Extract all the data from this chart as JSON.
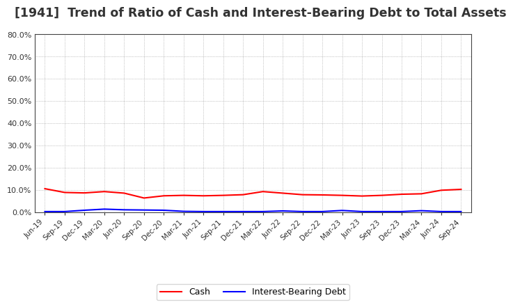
{
  "title": "[1941]  Trend of Ratio of Cash and Interest-Bearing Debt to Total Assets",
  "title_fontsize": 12.5,
  "background_color": "#ffffff",
  "plot_bg_color": "#ffffff",
  "grid_color": "#999999",
  "xlabels": [
    "Jun-19",
    "Sep-19",
    "Dec-19",
    "Mar-20",
    "Jun-20",
    "Sep-20",
    "Dec-20",
    "Mar-21",
    "Jun-21",
    "Sep-21",
    "Dec-21",
    "Mar-22",
    "Jun-22",
    "Sep-22",
    "Dec-22",
    "Mar-23",
    "Jun-23",
    "Sep-23",
    "Dec-23",
    "Mar-24",
    "Jun-24",
    "Sep-24"
  ],
  "cash": [
    10.5,
    8.8,
    8.6,
    9.2,
    8.5,
    6.3,
    7.3,
    7.5,
    7.3,
    7.5,
    7.8,
    9.2,
    8.5,
    7.8,
    7.7,
    7.5,
    7.2,
    7.5,
    8.0,
    8.2,
    9.8,
    10.2
  ],
  "interest_bearing_debt": [
    0.2,
    0.2,
    0.8,
    1.3,
    1.0,
    0.9,
    0.8,
    0.3,
    0.2,
    0.2,
    0.2,
    0.2,
    0.5,
    0.2,
    0.2,
    0.7,
    0.2,
    0.2,
    0.2,
    0.6,
    0.2,
    0.2
  ],
  "cash_color": "#ff0000",
  "debt_color": "#0000ff",
  "ylim": [
    0,
    80
  ],
  "yticks": [
    0,
    10,
    20,
    30,
    40,
    50,
    60,
    70,
    80
  ],
  "legend_cash": "Cash",
  "legend_debt": "Interest-Bearing Debt",
  "line_width": 1.5
}
